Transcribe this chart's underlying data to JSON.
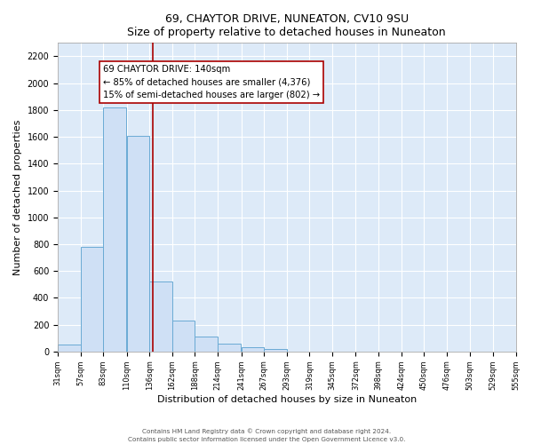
{
  "title": "69, CHAYTOR DRIVE, NUNEATON, CV10 9SU",
  "subtitle": "Size of property relative to detached houses in Nuneaton",
  "xlabel": "Distribution of detached houses by size in Nuneaton",
  "ylabel": "Number of detached properties",
  "bin_edges": [
    31,
    57,
    83,
    110,
    136,
    162,
    188,
    214,
    241,
    267,
    293,
    319,
    345,
    372,
    398,
    424,
    450,
    476,
    503,
    529,
    555
  ],
  "bin_labels": [
    "31sqm",
    "57sqm",
    "83sqm",
    "110sqm",
    "136sqm",
    "162sqm",
    "188sqm",
    "214sqm",
    "241sqm",
    "267sqm",
    "293sqm",
    "319sqm",
    "345sqm",
    "372sqm",
    "398sqm",
    "424sqm",
    "450sqm",
    "476sqm",
    "503sqm",
    "529sqm",
    "555sqm"
  ],
  "counts": [
    50,
    780,
    1820,
    1610,
    520,
    230,
    110,
    60,
    30,
    20,
    0,
    0,
    0,
    0,
    0,
    0,
    0,
    0,
    0,
    0
  ],
  "bar_color": "#cfe0f5",
  "bar_edge_color": "#6aaad4",
  "property_size": 140,
  "vline_color": "#aa0000",
  "annotation_title": "69 CHAYTOR DRIVE: 140sqm",
  "annotation_line1": "← 85% of detached houses are smaller (4,376)",
  "annotation_line2": "15% of semi-detached houses are larger (802) →",
  "annotation_box_color": "#ffffff",
  "annotation_box_edge_color": "#aa0000",
  "ylim": [
    0,
    2300
  ],
  "yticks": [
    0,
    200,
    400,
    600,
    800,
    1000,
    1200,
    1400,
    1600,
    1800,
    2000,
    2200
  ],
  "background_color": "#ddeaf8",
  "grid_color": "#ffffff",
  "footer_line1": "Contains HM Land Registry data © Crown copyright and database right 2024.",
  "footer_line2": "Contains public sector information licensed under the Open Government Licence v3.0."
}
